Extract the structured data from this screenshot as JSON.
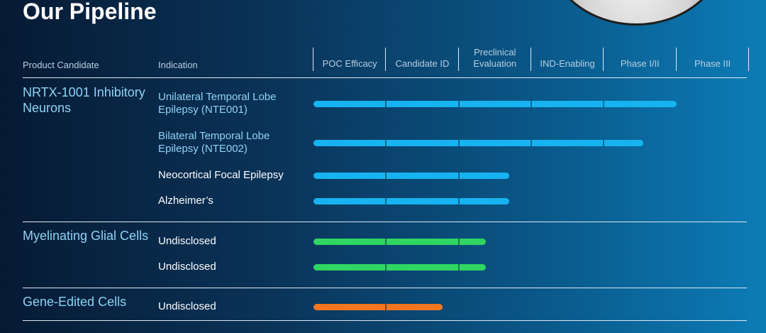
{
  "page": {
    "title": "Our Pipeline"
  },
  "headers": {
    "candidate": "Product Candidate",
    "indication": "Indication"
  },
  "chart_data": {
    "type": "bar",
    "stages": [
      "POC Efficacy",
      "Candidate ID",
      "Preclinical Evaluation",
      "IND-Enabling",
      "Phase I/II",
      "Phase III"
    ],
    "groups": [
      {
        "candidate": "NRTX-1001 Inhibitory Neurons",
        "color": "#17b3f0",
        "rows": [
          {
            "indication": "Unilateral Temporal Lobe Epilepsy (NTE001)",
            "progress": 5.0,
            "label_color": "#8fd3f5"
          },
          {
            "indication": "Bilateral Temporal Lobe Epilepsy (NTE002)",
            "progress": 4.55,
            "label_color": "#8fd3f5"
          },
          {
            "indication": "Neocortical Focal Epilepsy",
            "progress": 2.7,
            "label_color": "#ffffff"
          },
          {
            "indication": "Alzheimer’s",
            "progress": 2.7,
            "label_color": "#ffffff"
          }
        ]
      },
      {
        "candidate": "Myelinating Glial Cells",
        "color": "#2fd661",
        "rows": [
          {
            "indication": "Undisclosed",
            "progress": 2.38,
            "label_color": "#ffffff"
          },
          {
            "indication": "Undisclosed",
            "progress": 2.38,
            "label_color": "#ffffff"
          }
        ]
      },
      {
        "candidate": "Gene-Edited Cells",
        "color": "#f5761f",
        "rows": [
          {
            "indication": "Undisclosed",
            "progress": 1.78,
            "label_color": "#ffffff"
          }
        ]
      }
    ]
  }
}
